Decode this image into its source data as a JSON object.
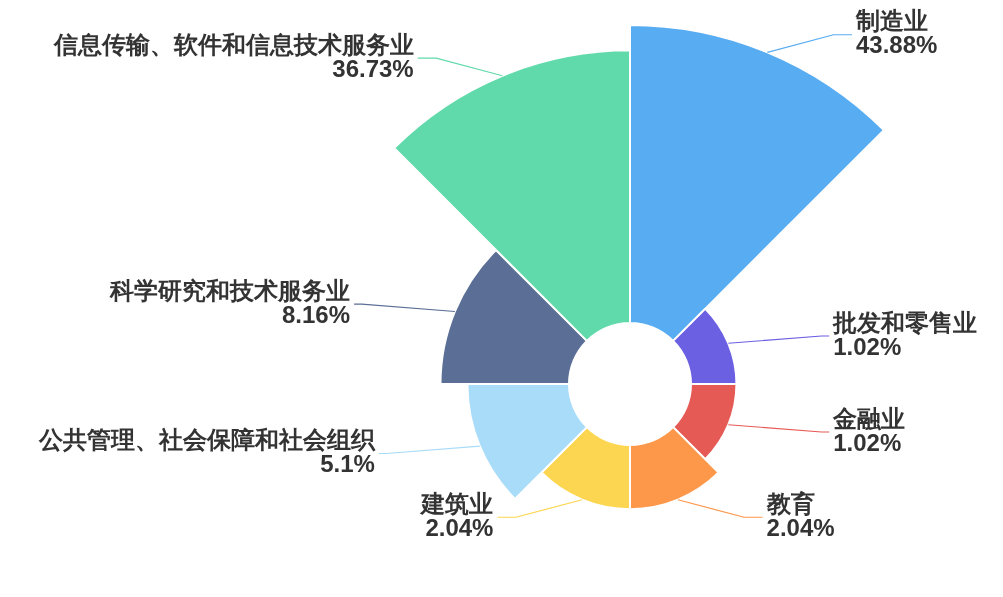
{
  "chart_data": {
    "type": "other",
    "categories": [
      "制造业",
      "批发和零售业",
      "金融业",
      "教育",
      "建筑业",
      "公共管理、社会保障和社会组织",
      "科学研究和技术服务业",
      "信息传输、软件和信息技术服务业"
    ],
    "values": [
      43.88,
      1.02,
      1.02,
      2.04,
      2.04,
      5.1,
      8.16,
      36.73
    ],
    "colors": [
      "#58acf2",
      "#6b5fe2",
      "#e65a56",
      "#fd9749",
      "#fdd651",
      "#a8dcf8",
      "#5a6e96",
      "#61daab"
    ],
    "value_labels": [
      "43.88%",
      "1.02%",
      "1.02%",
      "2.04%",
      "2.04%",
      "5.1%",
      "8.16%",
      "36.73%"
    ]
  }
}
